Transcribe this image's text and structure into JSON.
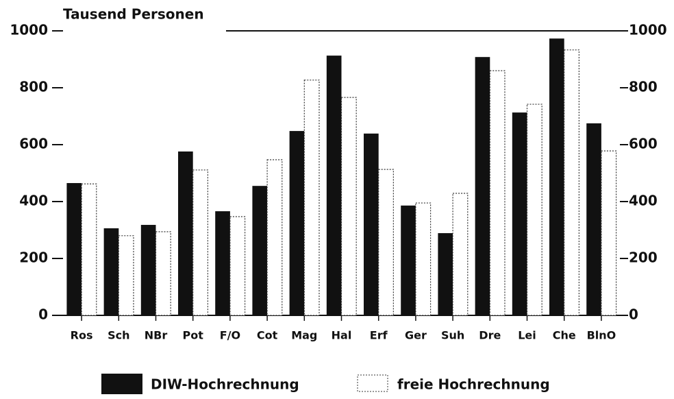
{
  "chart_data": {
    "type": "bar",
    "title": "Tausend Personen",
    "categories": [
      "Ros",
      "Sch",
      "NBr",
      "Pot",
      "F/O",
      "Cot",
      "Mag",
      "Hal",
      "Erf",
      "Ger",
      "Suh",
      "Dre",
      "Lei",
      "Che",
      "BlnO"
    ],
    "series": [
      {
        "name": "DIW-Hochrechnung",
        "color": "#111111",
        "values": [
          465,
          306,
          318,
          576,
          366,
          455,
          648,
          913,
          639,
          386,
          289,
          908,
          713,
          973,
          675
        ]
      },
      {
        "name": "freie Hochrechnung",
        "color": "#ffffff",
        "values": [
          462,
          280,
          294,
          511,
          347,
          547,
          827,
          766,
          513,
          395,
          429,
          860,
          742,
          933,
          578
        ]
      }
    ],
    "ylim": [
      0,
      1000
    ],
    "yticks": [
      0,
      200,
      400,
      600,
      800,
      1000
    ],
    "y2lim": [
      0,
      1000
    ],
    "y2ticks": [
      0,
      200,
      400,
      600,
      800,
      1000
    ],
    "legend": "bottom"
  }
}
